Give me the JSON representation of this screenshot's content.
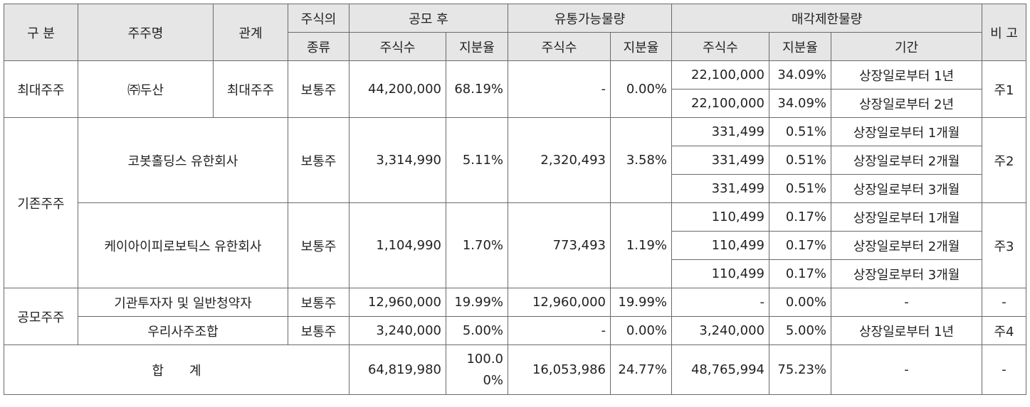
{
  "header": {
    "category": "구 분",
    "holder": "주주명",
    "relation": "관계",
    "stock_type_top": "주식의",
    "stock_type_bottom": "종류",
    "post_ipo": "공모 후",
    "tradable": "유통가능물량",
    "restricted": "매각제한물량",
    "note": "비 고",
    "shares": "주식수",
    "ratio": "지분율",
    "period": "기간"
  },
  "groups": {
    "largest": "최대주주",
    "existing": "기존주주",
    "public": "공모주주"
  },
  "doosan": {
    "name": "㈜두산",
    "relation": "최대주주",
    "stock_type": "보통주",
    "post_shares": "44,200,000",
    "post_ratio": "68.19%",
    "trade_shares": "-",
    "trade_ratio": "0.00%",
    "note": "주1",
    "restricted": [
      {
        "shares": "22,100,000",
        "ratio": "34.09%",
        "period": "상장일로부터 1년"
      },
      {
        "shares": "22,100,000",
        "ratio": "34.09%",
        "period": "상장일로부터 2년"
      }
    ]
  },
  "cobot": {
    "name": "코봇홀딩스 유한회사",
    "stock_type": "보통주",
    "post_shares": "3,314,990",
    "post_ratio": "5.11%",
    "trade_shares": "2,320,493",
    "trade_ratio": "3.58%",
    "note": "주2",
    "restricted": [
      {
        "shares": "331,499",
        "ratio": "0.51%",
        "period": "상장일로부터 1개월"
      },
      {
        "shares": "331,499",
        "ratio": "0.51%",
        "period": "상장일로부터 2개월"
      },
      {
        "shares": "331,499",
        "ratio": "0.51%",
        "period": "상장일로부터 3개월"
      }
    ]
  },
  "kai": {
    "name": "케이아이피로보틱스 유한회사",
    "stock_type": "보통주",
    "post_shares": "1,104,990",
    "post_ratio": "1.70%",
    "trade_shares": "773,493",
    "trade_ratio": "1.19%",
    "note": "주3",
    "restricted": [
      {
        "shares": "110,499",
        "ratio": "0.17%",
        "period": "상장일로부터 1개월"
      },
      {
        "shares": "110,499",
        "ratio": "0.17%",
        "period": "상장일로부터 2개월"
      },
      {
        "shares": "110,499",
        "ratio": "0.17%",
        "period": "상장일로부터 3개월"
      }
    ]
  },
  "institutional": {
    "name": "기관투자자 및 일반청약자",
    "stock_type": "보통주",
    "post_shares": "12,960,000",
    "post_ratio": "19.99%",
    "trade_shares": "12,960,000",
    "trade_ratio": "19.99%",
    "rest_shares": "-",
    "rest_ratio": "0.00%",
    "period": "-",
    "note": "-"
  },
  "esop": {
    "name": "우리사주조합",
    "stock_type": "보통주",
    "post_shares": "3,240,000",
    "post_ratio": "5.00%",
    "trade_shares": "-",
    "trade_ratio": "0.00%",
    "rest_shares": "3,240,000",
    "rest_ratio": "5.00%",
    "period": "상장일로부터 1년",
    "note": "주4"
  },
  "total": {
    "label": "합　　계",
    "post_shares": "64,819,980",
    "post_ratio_line1": "100.0",
    "post_ratio_line2": "0%",
    "trade_shares": "16,053,986",
    "trade_ratio": "24.77%",
    "rest_shares": "48,765,994",
    "rest_ratio": "75.23%",
    "period": "-",
    "note": "-"
  }
}
